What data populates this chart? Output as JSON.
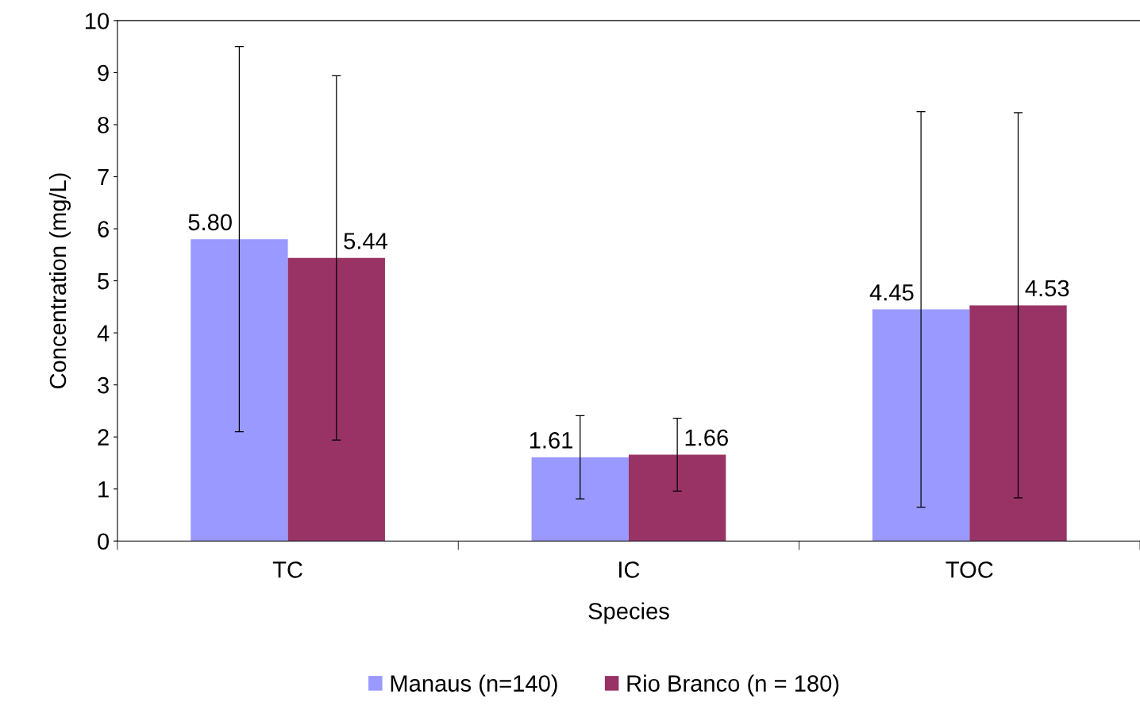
{
  "chart_data": {
    "type": "bar",
    "xlabel": "Species",
    "ylabel": "Concentration (mg/L)",
    "categories": [
      "TC",
      "IC",
      "TOC"
    ],
    "series": [
      {
        "name": "Manaus (n=140)",
        "color": "#9999ff",
        "values": [
          5.8,
          1.61,
          4.45
        ],
        "errors": [
          3.7,
          0.8,
          3.8
        ],
        "value_labels": [
          "5.80",
          "1.61",
          "4.45"
        ]
      },
      {
        "name": "Rio Branco (n = 180)",
        "color": "#993366",
        "values": [
          5.44,
          1.66,
          4.53
        ],
        "errors": [
          3.5,
          0.7,
          3.7
        ],
        "value_labels": [
          "5.44",
          "1.66",
          "4.53"
        ]
      }
    ],
    "ylim": [
      0,
      10
    ],
    "yticks": [
      0,
      1,
      2,
      3,
      4,
      5,
      6,
      7,
      8,
      9,
      10
    ],
    "grid": false,
    "legend": "bottom"
  }
}
